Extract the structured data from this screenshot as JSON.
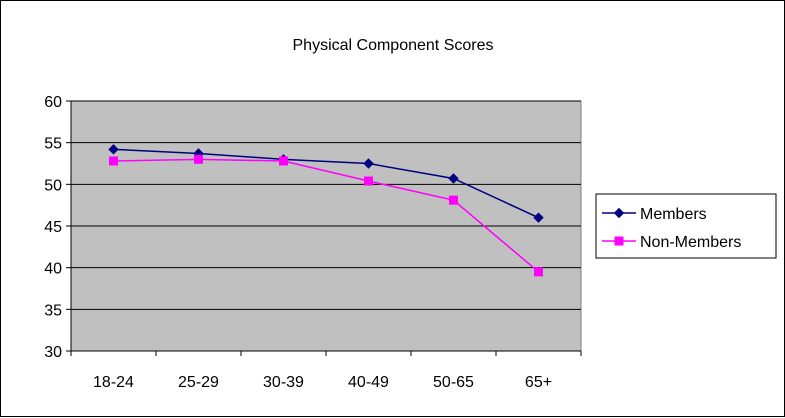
{
  "chart_data": {
    "type": "line",
    "title": "Physical Component Scores",
    "xlabel": "",
    "ylabel": "",
    "categories": [
      "18-24",
      "25-29",
      "30-39",
      "40-49",
      "50-65",
      "65+"
    ],
    "ylim": [
      30,
      60
    ],
    "yticks": [
      30,
      35,
      40,
      45,
      50,
      55,
      60
    ],
    "grid": true,
    "legend_position": "right",
    "plot_background": "#c0c0c0",
    "series": [
      {
        "name": "Members",
        "color": "#000080",
        "marker": "diamond",
        "values": [
          54.2,
          53.7,
          53.0,
          52.5,
          50.7,
          46.0
        ]
      },
      {
        "name": "Non-Members",
        "color": "#ff00ff",
        "marker": "square",
        "values": [
          52.8,
          53.0,
          52.8,
          50.4,
          48.1,
          39.5
        ]
      }
    ]
  }
}
